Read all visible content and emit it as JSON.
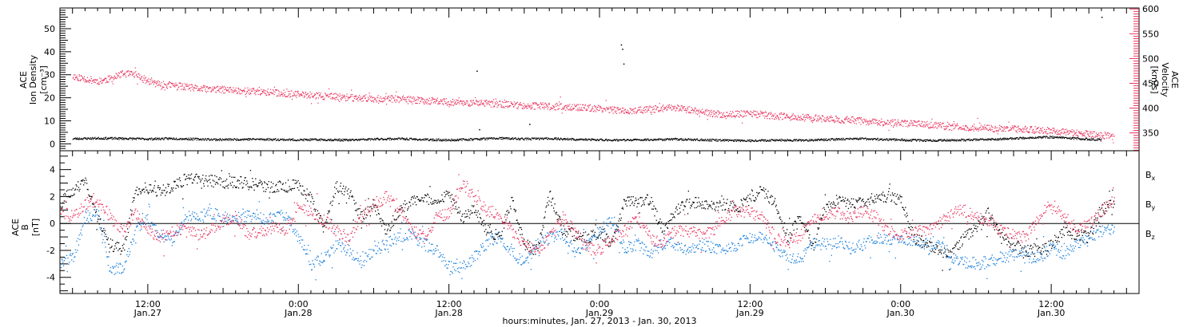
{
  "colors": {
    "density": "#000000",
    "velocity": "#e8335d",
    "bx": "#000000",
    "by": "#1a7fdb",
    "bz": "#e8335d"
  },
  "chart_data": [
    {
      "type": "scatter",
      "panel": "top",
      "title": "",
      "left_axis_label": [
        "ACE",
        "Ion Density",
        "[cm⁻³]"
      ],
      "right_axis_label": [
        "ACE",
        "Velocity",
        "[km/s]"
      ],
      "left_ylim": [
        -3,
        59
      ],
      "left_ticks": [
        "0",
        "10",
        "20",
        "30",
        "40",
        "50"
      ],
      "right_ylim": [
        314,
        602
      ],
      "right_ticks": [
        "350",
        "400",
        "450",
        "500",
        "550",
        "600"
      ],
      "x_unit": "hours since Jan.27 00:00",
      "xlim": [
        5,
        91
      ],
      "grid": false,
      "series": [
        {
          "name": "Ion Density",
          "axis": "left",
          "x": [
            6,
            8,
            10,
            12,
            14,
            16,
            18,
            20,
            22,
            24,
            26,
            28,
            30,
            32,
            34,
            36,
            38,
            40,
            42,
            44,
            46,
            48,
            50,
            52,
            54,
            56,
            58,
            60,
            62,
            64,
            66,
            68,
            70,
            72,
            74,
            76,
            78,
            80,
            82,
            84,
            86,
            88
          ],
          "y": [
            2.4,
            2.6,
            2.5,
            2.3,
            2.5,
            2.2,
            2.0,
            2.2,
            2.1,
            1.9,
            2.0,
            1.8,
            2.2,
            2.4,
            2.0,
            1.8,
            2.2,
            2.6,
            2.3,
            2.5,
            2.1,
            1.9,
            1.8,
            2.0,
            2.2,
            1.9,
            1.7,
            1.6,
            1.8,
            1.7,
            2.0,
            2.4,
            2.2,
            1.9,
            1.6,
            1.8,
            1.9,
            2.3,
            2.8,
            3.1,
            2.5,
            1.9
          ],
          "outliers": [
            [
              38.2,
              31.8
            ],
            [
              49.7,
              43.2
            ],
            [
              49.8,
              41.3
            ],
            [
              49.9,
              34.9
            ],
            [
              42.4,
              8.7
            ],
            [
              38.4,
              6.4
            ],
            [
              88.0,
              55.2
            ]
          ]
        },
        {
          "name": "Velocity",
          "axis": "right",
          "x": [
            6,
            7,
            8,
            9,
            10,
            11,
            12,
            13,
            14,
            15,
            16,
            18,
            20,
            22,
            24,
            26,
            28,
            30,
            32,
            34,
            36,
            38,
            40,
            42,
            44,
            46,
            48,
            50,
            52,
            54,
            56,
            58,
            60,
            62,
            64,
            66,
            68,
            70,
            72,
            74,
            76,
            78,
            80,
            82,
            84,
            86,
            88,
            89
          ],
          "y": [
            465,
            460,
            455,
            460,
            470,
            468,
            455,
            448,
            447,
            443,
            440,
            438,
            435,
            432,
            428,
            425,
            422,
            420,
            419,
            416,
            413,
            411,
            409,
            406,
            404,
            402,
            400,
            395,
            398,
            402,
            393,
            387,
            390,
            385,
            382,
            379,
            377,
            372,
            370,
            368,
            363,
            361,
            359,
            358,
            355,
            350,
            346,
            344
          ]
        }
      ]
    },
    {
      "type": "scatter",
      "panel": "bottom",
      "title": "",
      "left_axis_label": [
        "ACE",
        "B",
        "[nT]"
      ],
      "ylim": [
        -5.2,
        5.4
      ],
      "y_ticks": [
        "-4",
        "-2",
        "0",
        "2",
        "4"
      ],
      "x_unit": "hours since Jan.27 00:00",
      "xlim": [
        5,
        91
      ],
      "x_ticks": [
        {
          "hour": 12,
          "time": "12:00",
          "date": "Jan.27"
        },
        {
          "hour": 24,
          "time": "0:00",
          "date": "Jan.28"
        },
        {
          "hour": 36,
          "time": "12:00",
          "date": "Jan.28"
        },
        {
          "hour": 48,
          "time": "0:00",
          "date": "Jan.29"
        },
        {
          "hour": 60,
          "time": "12:00",
          "date": "Jan.29"
        },
        {
          "hour": 72,
          "time": "0:00",
          "date": "Jan.30"
        },
        {
          "hour": 84,
          "time": "12:00",
          "date": "Jan.30"
        }
      ],
      "xlabel": "hours:minutes, Jan. 27, 2013 - Jan. 30, 2013",
      "zero_line": true,
      "grid": false,
      "series": [
        {
          "name": "Bx",
          "x": [
            5,
            6,
            7,
            8,
            9,
            10,
            11,
            12,
            13,
            14,
            15,
            16,
            17,
            18,
            19,
            20,
            21,
            22,
            23,
            24,
            25,
            26,
            27,
            28,
            29,
            30,
            31,
            32,
            33,
            34,
            35,
            36,
            37,
            38,
            39,
            40,
            41,
            42,
            43,
            44,
            45,
            46,
            47,
            48,
            49,
            50,
            51,
            52,
            53,
            54,
            55,
            56,
            57,
            58,
            59,
            60,
            61,
            62,
            63,
            64,
            65,
            66,
            67,
            68,
            69,
            70,
            71,
            72,
            73,
            74,
            75,
            76,
            77,
            78,
            79,
            80,
            81,
            82,
            83,
            84,
            85,
            86,
            87,
            88,
            89
          ],
          "y": [
            1.5,
            2.5,
            3.0,
            0.5,
            -1.5,
            -2.0,
            2.5,
            2.7,
            2.4,
            2.8,
            3.3,
            3.3,
            3.2,
            3.1,
            3.1,
            3.0,
            2.9,
            2.7,
            2.8,
            2.9,
            1.8,
            -0.3,
            2.8,
            2.3,
            0.5,
            1.5,
            -0.5,
            1.0,
            1.6,
            2.0,
            1.4,
            2.3,
            0.4,
            1.2,
            -0.5,
            -1.0,
            1.8,
            -1.5,
            -2.0,
            2.2,
            -0.5,
            -0.8,
            -1.0,
            -0.6,
            -1.5,
            1.8,
            1.5,
            1.8,
            -0.5,
            1.0,
            1.4,
            1.6,
            1.4,
            1.4,
            1.2,
            1.9,
            2.5,
            1.5,
            -1.0,
            0.5,
            -1.5,
            1.2,
            1.8,
            1.5,
            1.5,
            2.0,
            2.0,
            1.8,
            -1.0,
            -1.5,
            -2.0,
            -2.3,
            -1.0,
            -0.2,
            0.8,
            -1.0,
            -1.5,
            -2.0,
            -2.0,
            -1.5,
            -0.5,
            -0.8,
            -1.0,
            1.0,
            1.7
          ]
        },
        {
          "name": "By",
          "x": [
            5,
            6,
            7,
            8,
            9,
            10,
            11,
            12,
            13,
            14,
            15,
            16,
            17,
            18,
            19,
            20,
            21,
            22,
            23,
            24,
            25,
            26,
            27,
            28,
            29,
            30,
            31,
            32,
            33,
            34,
            35,
            36,
            37,
            38,
            39,
            40,
            41,
            42,
            43,
            44,
            45,
            46,
            47,
            48,
            49,
            50,
            51,
            52,
            53,
            54,
            55,
            56,
            57,
            58,
            59,
            60,
            61,
            62,
            63,
            64,
            65,
            66,
            67,
            68,
            69,
            70,
            71,
            72,
            73,
            74,
            75,
            76,
            77,
            78,
            79,
            80,
            81,
            82,
            83,
            84,
            85,
            86,
            87,
            88,
            89
          ],
          "y": [
            -2.8,
            -2.6,
            0.5,
            0.8,
            -3.5,
            -3.2,
            -0.5,
            0.5,
            -0.8,
            -1.2,
            0.5,
            0.6,
            0.8,
            0.5,
            0.3,
            0.6,
            0.4,
            0.5,
            0.7,
            -1.0,
            -3.0,
            -2.5,
            -1.5,
            -2.0,
            -2.8,
            -2.0,
            -1.5,
            -1.0,
            -0.8,
            -1.5,
            -2.0,
            -3.2,
            -3.3,
            -2.5,
            -1.5,
            -1.0,
            -2.0,
            -3.0,
            -1.5,
            -1.0,
            -0.8,
            -2.0,
            -1.5,
            -0.5,
            0.2,
            -1.8,
            -1.5,
            -2.2,
            -1.5,
            -1.5,
            -2.0,
            -1.5,
            -1.8,
            -2.0,
            -1.5,
            -1.0,
            -1.0,
            -1.8,
            -2.5,
            -2.7,
            -1.5,
            -1.5,
            -1.3,
            -1.8,
            -1.5,
            -1.0,
            -1.2,
            -1.0,
            -1.3,
            -1.5,
            -1.5,
            -2.5,
            -2.8,
            -3.0,
            -2.8,
            -2.5,
            -2.3,
            -2.5,
            -2.5,
            -1.8,
            -2.2,
            -1.5,
            -1.0,
            -0.5,
            -0.3
          ]
        },
        {
          "name": "Bz",
          "x": [
            5,
            6,
            7,
            8,
            9,
            10,
            11,
            12,
            13,
            14,
            15,
            16,
            17,
            18,
            19,
            20,
            21,
            22,
            23,
            24,
            25,
            26,
            27,
            28,
            29,
            30,
            31,
            32,
            33,
            34,
            35,
            36,
            37,
            38,
            39,
            40,
            41,
            42,
            43,
            44,
            45,
            46,
            47,
            48,
            49,
            50,
            51,
            52,
            53,
            54,
            55,
            56,
            57,
            58,
            59,
            60,
            61,
            62,
            63,
            64,
            65,
            66,
            67,
            68,
            69,
            70,
            71,
            72,
            73,
            74,
            75,
            76,
            77,
            78,
            79,
            80,
            81,
            82,
            83,
            84,
            85,
            86,
            87,
            88,
            89
          ],
          "y": [
            1.0,
            0.5,
            1.5,
            1.8,
            0.5,
            -0.5,
            0.8,
            -0.5,
            -1.0,
            -0.5,
            -0.3,
            -0.8,
            -0.5,
            0.3,
            0.5,
            -0.8,
            -0.5,
            -0.3,
            -0.5,
            1.5,
            0.8,
            0.3,
            -0.5,
            -1.0,
            0.5,
            1.5,
            2.0,
            1.0,
            -0.5,
            -1.0,
            0.5,
            0.8,
            3.0,
            2.0,
            1.0,
            0.8,
            -0.5,
            -1.5,
            -2.0,
            -1.0,
            0.5,
            -0.5,
            -1.8,
            -2.0,
            -1.0,
            -0.5,
            0.5,
            -1.0,
            -1.5,
            -0.5,
            -0.5,
            -0.8,
            -0.5,
            0.5,
            1.0,
            0.8,
            0.5,
            -1.0,
            -1.5,
            -0.8,
            0.5,
            0.8,
            0.8,
            0.5,
            1.0,
            0.5,
            -0.5,
            -0.8,
            -0.5,
            -0.5,
            0.0,
            0.8,
            1.0,
            0.5,
            0.3,
            -0.5,
            -0.8,
            -1.0,
            0.5,
            1.5,
            0.5,
            -0.3,
            0.0,
            1.0,
            1.8
          ]
        }
      ],
      "legend": [
        {
          "base": "B",
          "sub": "x"
        },
        {
          "base": "B",
          "sub": "y"
        },
        {
          "base": "B",
          "sub": "z"
        }
      ]
    }
  ]
}
